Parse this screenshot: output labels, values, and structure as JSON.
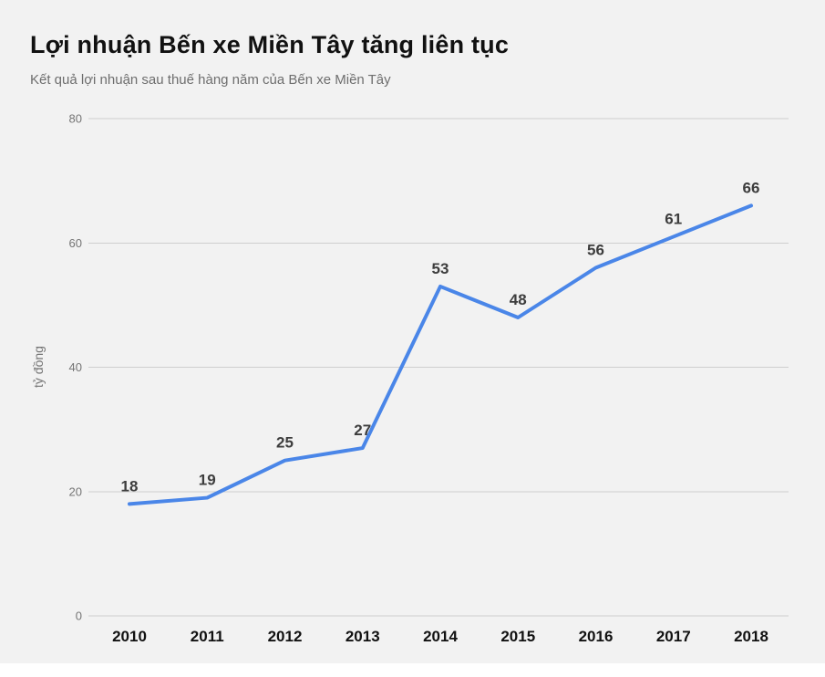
{
  "header": {
    "title": "Lợi nhuận Bến xe Miền Tây tăng liên tục",
    "subtitle": "Kết quả lợi nhuận sau thuế hàng năm của Bến xe Miền Tây"
  },
  "chart_data": {
    "type": "line",
    "title": "Lợi nhuận Bến xe Miền Tây tăng liên tục",
    "subtitle": "Kết quả lợi nhuận sau thuế hàng năm của Bến xe Miền Tây",
    "categories": [
      "2010",
      "2011",
      "2012",
      "2013",
      "2014",
      "2015",
      "2016",
      "2017",
      "2018"
    ],
    "values": [
      18,
      19,
      25,
      27,
      53,
      48,
      56,
      61,
      66
    ],
    "xlabel": "",
    "ylabel": "tỷ đồng",
    "ylim": [
      0,
      80
    ],
    "yticks": [
      0,
      20,
      40,
      60,
      80
    ],
    "grid": true,
    "legend": "none",
    "data_labels": true,
    "colors": {
      "line": "#4a86e8",
      "grid": "#cfcfcf",
      "background": "#f2f2f2",
      "value_label": "#3d3d3d",
      "axis_tick": "#757575"
    }
  }
}
